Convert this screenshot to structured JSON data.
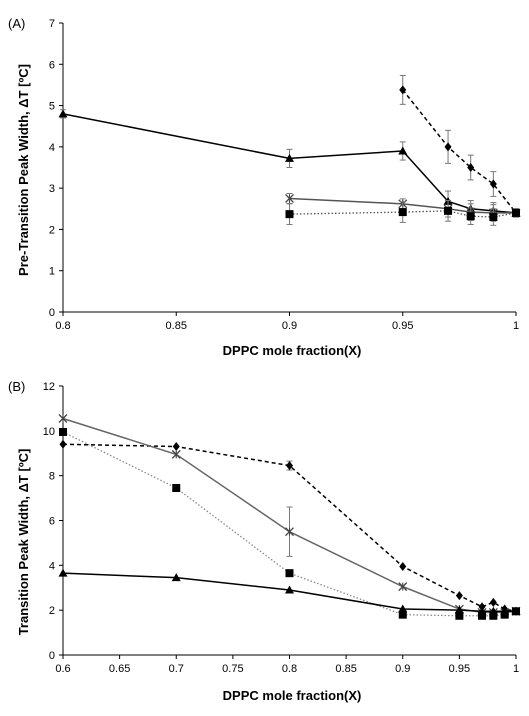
{
  "chart_data": [
    {
      "panel_label": "(A)",
      "type": "line",
      "xlabel": "DPPC mole fraction(X)",
      "ylabel": "Pre-Transition Peak Width, ΔT [ºC]",
      "xlim": [
        0.8,
        1.0
      ],
      "ylim": [
        0,
        7
      ],
      "xticks": [
        0.8,
        0.85,
        0.9,
        0.95,
        1
      ],
      "xtick_labels": [
        "0.8",
        "0.85",
        "0.9",
        "0.95",
        "1"
      ],
      "yticks": [
        0,
        1,
        2,
        3,
        4,
        5,
        6,
        7
      ],
      "ytick_labels": [
        "0",
        "1",
        "2",
        "3",
        "4",
        "5",
        "6",
        "7"
      ],
      "grid": false,
      "legend": "none",
      "series": [
        {
          "marker": "diamond",
          "line": "dashed",
          "color": "#000000",
          "x": [
            0.95,
            0.97,
            0.98,
            0.99,
            1.0
          ],
          "y": [
            5.38,
            4.0,
            3.5,
            3.1,
            2.4
          ],
          "err": [
            0.35,
            0.4,
            0.3,
            0.3,
            0.1
          ]
        },
        {
          "marker": "triangle",
          "line": "solid",
          "color": "#000000",
          "x": [
            0.8,
            0.9,
            0.95,
            0.97,
            0.98,
            0.99,
            1.0
          ],
          "y": [
            4.8,
            3.72,
            3.9,
            2.68,
            2.5,
            2.45,
            2.4
          ],
          "err": [
            0.1,
            0.22,
            0.22,
            0.25,
            0.2,
            0.2,
            0.1
          ]
        },
        {
          "marker": "x",
          "line": "solid",
          "color": "#555555",
          "x": [
            0.9,
            0.95,
            0.97,
            0.98,
            0.99,
            1.0
          ],
          "y": [
            2.75,
            2.62,
            2.5,
            2.42,
            2.4,
            2.4
          ],
          "err": [
            0.12,
            0.12,
            0.2,
            0.2,
            0.2,
            0.1
          ]
        },
        {
          "marker": "square",
          "line": "dotted",
          "color": "#555555",
          "x": [
            0.9,
            0.95,
            0.97,
            0.98,
            0.99,
            1.0
          ],
          "y": [
            2.37,
            2.42,
            2.45,
            2.32,
            2.3,
            2.4
          ],
          "err": [
            0.25,
            0.25,
            0.25,
            0.2,
            0.2,
            0.1
          ]
        }
      ]
    },
    {
      "panel_label": "(B)",
      "type": "line",
      "xlabel": "DPPC mole fraction(X)",
      "ylabel": "Transition Peak Width, ΔT [ºC]",
      "xlim": [
        0.6,
        1.0
      ],
      "ylim": [
        0,
        12
      ],
      "xticks": [
        0.6,
        0.65,
        0.7,
        0.75,
        0.8,
        0.85,
        0.9,
        0.95,
        1
      ],
      "xtick_labels": [
        "0.6",
        "0.65",
        "0.7",
        "0.75",
        "0.8",
        "0.85",
        "0.9",
        "0.95",
        "1"
      ],
      "yticks": [
        0,
        2,
        4,
        6,
        8,
        10,
        12
      ],
      "ytick_labels": [
        "0",
        "2",
        "4",
        "6",
        "8",
        "10",
        "12"
      ],
      "grid": false,
      "legend": "none",
      "series": [
        {
          "marker": "diamond",
          "line": "dashed",
          "color": "#000000",
          "x": [
            0.6,
            0.7,
            0.8,
            0.9,
            0.95,
            0.97,
            0.98,
            0.99,
            1.0
          ],
          "y": [
            9.4,
            9.3,
            8.45,
            3.95,
            2.65,
            2.15,
            2.35,
            2.05,
            1.95
          ],
          "err": [
            0,
            0,
            0.2,
            0,
            0,
            0,
            0,
            0,
            0
          ]
        },
        {
          "marker": "x",
          "line": "solid",
          "color": "#666666",
          "x": [
            0.6,
            0.7,
            0.8,
            0.9,
            0.95,
            0.97,
            0.98,
            0.99,
            1.0
          ],
          "y": [
            10.55,
            8.95,
            5.5,
            3.05,
            2.05,
            1.9,
            1.9,
            1.9,
            1.95
          ],
          "err": [
            0,
            0,
            1.1,
            0,
            0,
            0,
            0,
            0,
            0
          ]
        },
        {
          "marker": "square",
          "line": "dotted",
          "color": "#888888",
          "x": [
            0.6,
            0.7,
            0.8,
            0.9,
            0.95,
            0.97,
            0.98,
            0.99,
            1.0
          ],
          "y": [
            9.95,
            7.45,
            3.65,
            1.8,
            1.75,
            1.75,
            1.75,
            1.8,
            1.95
          ],
          "err": [
            0,
            0,
            0,
            0,
            0,
            0,
            0,
            0,
            0
          ]
        },
        {
          "marker": "triangle",
          "line": "solid",
          "color": "#000000",
          "x": [
            0.6,
            0.7,
            0.8,
            0.9,
            0.95,
            0.97,
            0.98,
            0.99,
            1.0
          ],
          "y": [
            3.65,
            3.45,
            2.9,
            2.05,
            2.0,
            1.95,
            1.95,
            1.95,
            1.95
          ],
          "err": [
            0,
            0,
            0,
            0,
            0,
            0,
            0,
            0,
            0
          ]
        }
      ]
    }
  ]
}
